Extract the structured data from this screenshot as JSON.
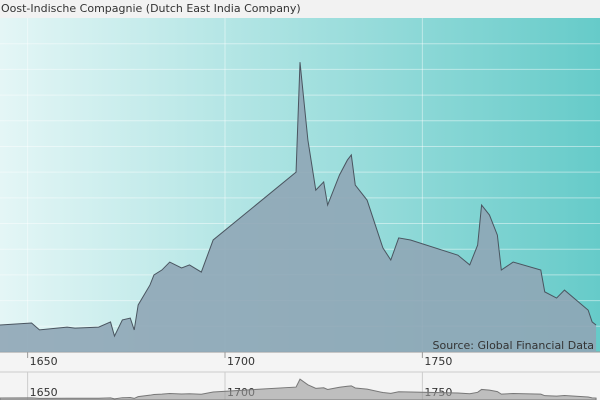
{
  "chart_data": {
    "type": "area",
    "title": "Oost-Indische Compagnie (Dutch East India Company)",
    "source": "Source: Global Financial Data",
    "x": [
      1643,
      1651,
      1653,
      1660,
      1662,
      1668,
      1671,
      1672,
      1674,
      1676,
      1677,
      1678,
      1681,
      1682,
      1684,
      1686,
      1689,
      1691,
      1694,
      1697,
      1718,
      1719,
      1721,
      1723,
      1725,
      1726,
      1729,
      1731,
      1732,
      1733,
      1736,
      1740,
      1742,
      1744,
      1747,
      1759,
      1762,
      1764,
      1765,
      1767,
      1769,
      1770,
      1773,
      1780,
      1781,
      1784,
      1786,
      1789,
      1792,
      1793,
      1794
    ],
    "values": [
      105,
      113,
      86,
      97,
      93,
      97,
      117,
      62,
      125,
      132,
      86,
      183,
      261,
      300,
      319,
      350,
      327,
      339,
      311,
      436,
      700,
      1128,
      825,
      630,
      662,
      572,
      689,
      747,
      767,
      650,
      591,
      405,
      358,
      444,
      436,
      377,
      339,
      416,
      572,
      533,
      455,
      319,
      350,
      319,
      234,
      210,
      241,
      202,
      163,
      117,
      105
    ],
    "color": "#8fa6b6",
    "xlim": [
      1643,
      1795
    ],
    "xticks": [
      1650,
      1700,
      1750
    ],
    "ylim": [
      0,
      1300
    ],
    "yticks": [
      100,
      200,
      300,
      400,
      500,
      600,
      700,
      800,
      900,
      1000,
      1100,
      1200
    ],
    "y_tick_labels": false,
    "grid": true,
    "navigator": true
  }
}
